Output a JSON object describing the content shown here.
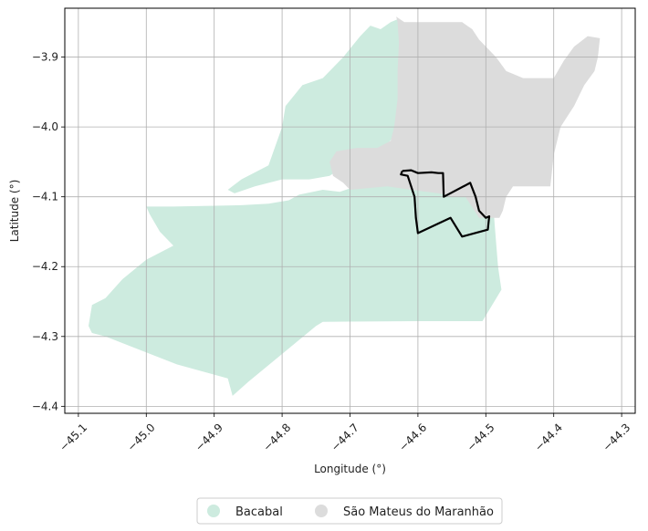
{
  "chart_data": {
    "type": "map",
    "xlabel": "Longitude (°)",
    "ylabel": "Latitude (°)",
    "xlim": [
      -45.12,
      -44.28
    ],
    "ylim": [
      -4.41,
      -3.83
    ],
    "grid": true,
    "x_ticks": [
      {
        "value": -45.1,
        "label": "−45.1"
      },
      {
        "value": -45.0,
        "label": "−45.0"
      },
      {
        "value": -44.9,
        "label": "−44.9"
      },
      {
        "value": -44.8,
        "label": "−44.8"
      },
      {
        "value": -44.7,
        "label": "−44.7"
      },
      {
        "value": -44.6,
        "label": "−44.6"
      },
      {
        "value": -44.5,
        "label": "−44.5"
      },
      {
        "value": -44.4,
        "label": "−44.4"
      },
      {
        "value": -44.3,
        "label": "−44.3"
      }
    ],
    "y_ticks": [
      {
        "value": -3.9,
        "label": "−3.9"
      },
      {
        "value": -4.0,
        "label": "−4.0"
      },
      {
        "value": -4.1,
        "label": "−4.1"
      },
      {
        "value": -4.2,
        "label": "−4.2"
      },
      {
        "value": -4.3,
        "label": "−4.3"
      },
      {
        "value": -4.4,
        "label": "−4.4"
      }
    ],
    "legend_position": "bottom-center",
    "legend": [
      {
        "name": "Bacabal",
        "color": "#cdebdf"
      },
      {
        "name": "São Mateus do Maranhão",
        "color": "#dcdcdc"
      }
    ],
    "regions": [
      {
        "name": "Bacabal",
        "color": "#cdebdf",
        "coords": [
          [
            -45.0,
            -4.114
          ],
          [
            -44.96,
            -4.114
          ],
          [
            -44.86,
            -4.112
          ],
          [
            -44.82,
            -4.11
          ],
          [
            -44.79,
            -4.105
          ],
          [
            -44.775,
            -4.097
          ],
          [
            -44.74,
            -4.09
          ],
          [
            -44.715,
            -4.093
          ],
          [
            -44.7,
            -4.088
          ],
          [
            -44.66,
            -4.083
          ],
          [
            -44.62,
            -4.083
          ],
          [
            -44.58,
            -4.082
          ],
          [
            -44.53,
            -4.093
          ],
          [
            -44.51,
            -4.092
          ],
          [
            -44.49,
            -4.097
          ],
          [
            -44.487,
            -4.14
          ],
          [
            -44.482,
            -4.2
          ],
          [
            -44.477,
            -4.233
          ],
          [
            -44.495,
            -4.262
          ],
          [
            -44.505,
            -4.278
          ],
          [
            -44.6,
            -4.278
          ],
          [
            -44.74,
            -4.279
          ],
          [
            -44.75,
            -4.285
          ],
          [
            -44.85,
            -4.365
          ],
          [
            -44.873,
            -4.385
          ],
          [
            -44.88,
            -4.36
          ],
          [
            -44.955,
            -4.34
          ],
          [
            -45.06,
            -4.3
          ],
          [
            -45.08,
            -4.295
          ],
          [
            -45.085,
            -4.285
          ],
          [
            -45.08,
            -4.255
          ],
          [
            -45.06,
            -4.245
          ],
          [
            -45.035,
            -4.218
          ],
          [
            -45.0,
            -4.19
          ],
          [
            -44.96,
            -4.17
          ],
          [
            -44.98,
            -4.15
          ],
          [
            -44.995,
            -4.125
          ]
        ]
      },
      {
        "name": "Bacabal",
        "color": "#cdebdf",
        "coords": [
          [
            -44.88,
            -4.09
          ],
          [
            -44.86,
            -4.075
          ],
          [
            -44.82,
            -4.055
          ],
          [
            -44.8,
            -4.0
          ],
          [
            -44.795,
            -3.97
          ],
          [
            -44.77,
            -3.94
          ],
          [
            -44.74,
            -3.93
          ],
          [
            -44.71,
            -3.9
          ],
          [
            -44.685,
            -3.87
          ],
          [
            -44.67,
            -3.855
          ],
          [
            -44.655,
            -3.86
          ],
          [
            -44.64,
            -3.85
          ],
          [
            -44.628,
            -3.845
          ],
          [
            -44.62,
            -3.86
          ],
          [
            -44.62,
            -3.9
          ],
          [
            -44.625,
            -3.96
          ],
          [
            -44.632,
            -4.01
          ],
          [
            -44.65,
            -4.03
          ],
          [
            -44.7,
            -4.05
          ],
          [
            -44.73,
            -4.07
          ],
          [
            -44.76,
            -4.075
          ],
          [
            -44.8,
            -4.075
          ],
          [
            -44.84,
            -4.085
          ],
          [
            -44.87,
            -4.095
          ]
        ]
      },
      {
        "name": "São Mateus do Maranhão",
        "color": "#dcdcdc",
        "coords": [
          [
            -44.632,
            -3.842
          ],
          [
            -44.62,
            -3.85
          ],
          [
            -44.535,
            -3.85
          ],
          [
            -44.52,
            -3.86
          ],
          [
            -44.51,
            -3.875
          ],
          [
            -44.485,
            -3.9
          ],
          [
            -44.47,
            -3.92
          ],
          [
            -44.445,
            -3.93
          ],
          [
            -44.4,
            -3.93
          ],
          [
            -44.385,
            -3.905
          ],
          [
            -44.37,
            -3.885
          ],
          [
            -44.35,
            -3.87
          ],
          [
            -44.332,
            -3.873
          ],
          [
            -44.335,
            -3.9
          ],
          [
            -44.34,
            -3.92
          ],
          [
            -44.355,
            -3.94
          ],
          [
            -44.37,
            -3.97
          ],
          [
            -44.39,
            -4.0
          ],
          [
            -44.4,
            -4.04
          ],
          [
            -44.405,
            -4.085
          ],
          [
            -44.46,
            -4.085
          ],
          [
            -44.47,
            -4.1
          ],
          [
            -44.475,
            -4.12
          ],
          [
            -44.48,
            -4.13
          ],
          [
            -44.51,
            -4.13
          ],
          [
            -44.53,
            -4.1
          ],
          [
            -44.55,
            -4.1
          ],
          [
            -44.57,
            -4.095
          ],
          [
            -44.61,
            -4.09
          ],
          [
            -44.645,
            -4.085
          ],
          [
            -44.7,
            -4.09
          ],
          [
            -44.71,
            -4.08
          ],
          [
            -44.725,
            -4.07
          ],
          [
            -44.73,
            -4.05
          ],
          [
            -44.72,
            -4.035
          ],
          [
            -44.69,
            -4.03
          ],
          [
            -44.66,
            -4.03
          ],
          [
            -44.64,
            -4.02
          ],
          [
            -44.635,
            -4.0
          ],
          [
            -44.63,
            -3.96
          ],
          [
            -44.63,
            -3.92
          ],
          [
            -44.628,
            -3.88
          ],
          [
            -44.63,
            -3.85
          ]
        ]
      }
    ],
    "outline": {
      "color": "#000000",
      "coords": [
        [
          -44.623,
          -4.063
        ],
        [
          -44.61,
          -4.062
        ],
        [
          -44.6,
          -4.066
        ],
        [
          -44.58,
          -4.065
        ],
        [
          -44.57,
          -4.066
        ],
        [
          -44.563,
          -4.066
        ],
        [
          -44.562,
          -4.1
        ],
        [
          -44.523,
          -4.08
        ],
        [
          -44.515,
          -4.1
        ],
        [
          -44.51,
          -4.12
        ],
        [
          -44.5,
          -4.13
        ],
        [
          -44.495,
          -4.128
        ],
        [
          -44.497,
          -4.147
        ],
        [
          -44.535,
          -4.157
        ],
        [
          -44.552,
          -4.13
        ],
        [
          -44.6,
          -4.152
        ],
        [
          -44.603,
          -4.13
        ],
        [
          -44.605,
          -4.1
        ],
        [
          -44.615,
          -4.07
        ],
        [
          -44.625,
          -4.068
        ],
        [
          -44.623,
          -4.063
        ]
      ]
    }
  }
}
